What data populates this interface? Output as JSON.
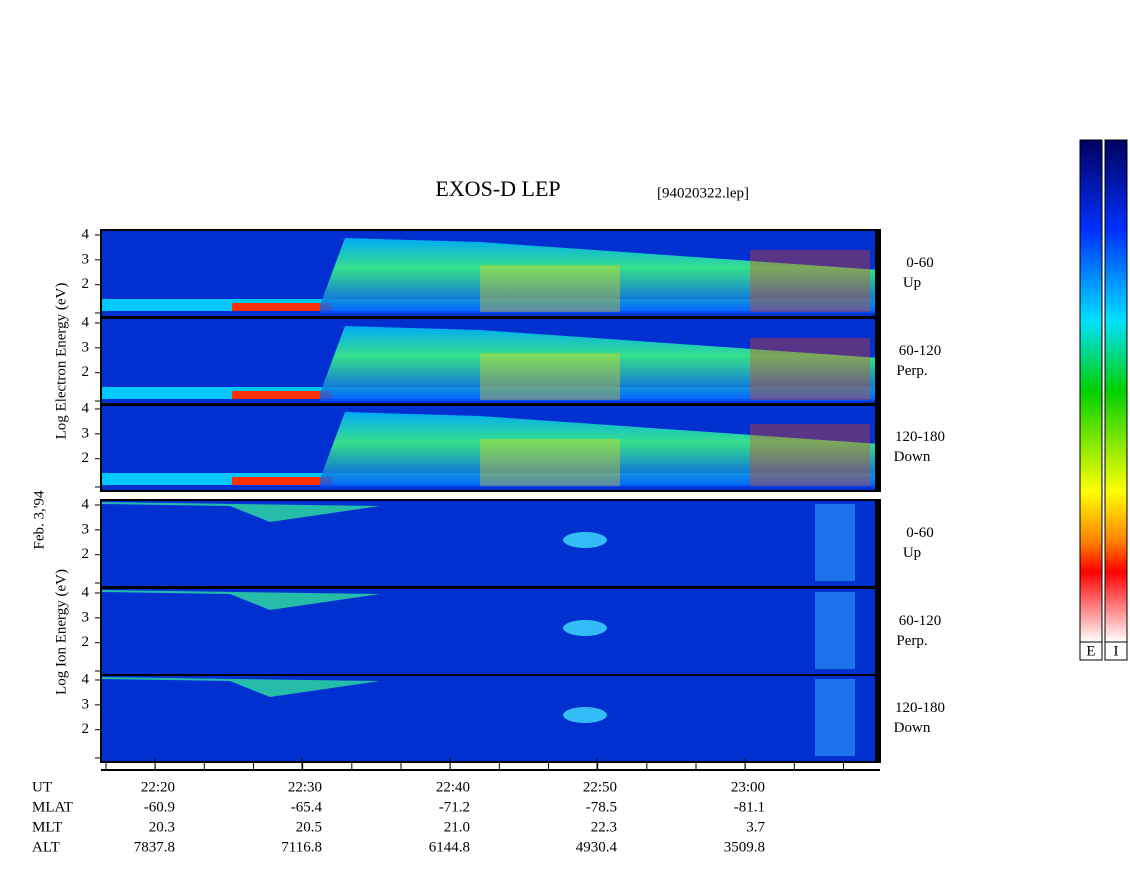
{
  "title": "EXOS-D LEP",
  "file": "[94020322.lep]",
  "date": "Feb. 3,'94",
  "electron_label": "Log   Electron   Energy (eV)",
  "ion_label": "Log   Ion   Energy (eV)",
  "ylim": [
    0.7,
    4.2
  ],
  "yticks": [
    2,
    3,
    4
  ],
  "panels": [
    {
      "angle": "0-60",
      "dir": "Up"
    },
    {
      "angle": "60-120",
      "dir": "Perp."
    },
    {
      "angle": "120-180",
      "dir": "Down"
    },
    {
      "angle": "0-60",
      "dir": "Up"
    },
    {
      "angle": "60-120",
      "dir": "Perp."
    },
    {
      "angle": "120-180",
      "dir": "Down"
    }
  ],
  "ephemeris": [
    {
      "name": "UT",
      "values": [
        "22:20",
        "22:30",
        "22:40",
        "22:50",
        "23:00"
      ]
    },
    {
      "name": "MLAT",
      "values": [
        "-60.9",
        "-65.4",
        "-71.2",
        "-78.5",
        "-81.1"
      ]
    },
    {
      "name": "MLT",
      "values": [
        "20.3",
        "20.5",
        "21.0",
        "22.3",
        "3.7"
      ]
    },
    {
      "name": "ALT",
      "values": [
        "7837.8",
        "7116.8",
        "6144.8",
        "4930.4",
        "3509.8"
      ]
    }
  ],
  "colorbar_labels": [
    "E",
    "I"
  ]
}
